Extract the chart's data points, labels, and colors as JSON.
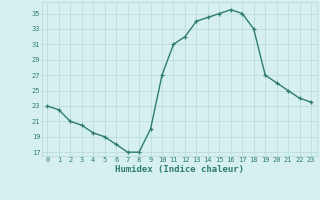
{
  "x": [
    0,
    1,
    2,
    3,
    4,
    5,
    6,
    7,
    8,
    9,
    10,
    11,
    12,
    13,
    14,
    15,
    16,
    17,
    18,
    19,
    20,
    21,
    22,
    23
  ],
  "y": [
    23,
    22.5,
    21,
    20.5,
    19.5,
    19,
    18,
    17,
    17,
    20,
    27,
    31,
    32,
    34,
    34.5,
    35,
    35.5,
    35,
    33,
    27,
    26,
    25,
    24,
    23.5
  ],
  "xlabel": "Humidex (Indice chaleur)",
  "line_color": "#2e7d6e",
  "marker": "+",
  "bg_color": "#d6f0f0",
  "grid_color": "#b8d8d8",
  "tick_label_color": "#2e7d6e",
  "axis_label_color": "#2e7d6e",
  "xlim": [
    -0.5,
    23.5
  ],
  "ylim": [
    16.5,
    36.5
  ],
  "yticks": [
    17,
    19,
    21,
    23,
    25,
    27,
    29,
    31,
    33,
    35
  ],
  "xticks": [
    0,
    1,
    2,
    3,
    4,
    5,
    6,
    7,
    8,
    9,
    10,
    11,
    12,
    13,
    14,
    15,
    16,
    17,
    18,
    19,
    20,
    21,
    22,
    23
  ]
}
